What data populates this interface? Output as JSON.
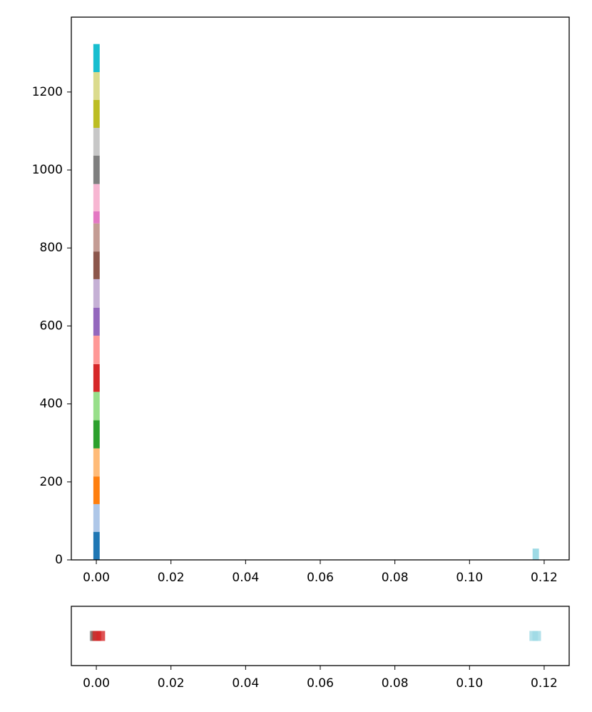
{
  "chart_data": [
    {
      "type": "histogram",
      "bins": [
        -0.0008,
        0.0009,
        0.1169,
        0.1186
      ],
      "stacked": true,
      "series": [
        {
          "color": "#1f77b4",
          "values": [
            72,
            0,
            0
          ]
        },
        {
          "color": "#aec7e8",
          "values": [
            71,
            0,
            0
          ]
        },
        {
          "color": "#ff7f0e",
          "values": [
            71,
            0,
            0
          ]
        },
        {
          "color": "#ffbb78",
          "values": [
            72,
            0,
            0
          ]
        },
        {
          "color": "#2ca02c",
          "values": [
            72,
            0,
            0
          ]
        },
        {
          "color": "#98df8a",
          "values": [
            73,
            0,
            0
          ]
        },
        {
          "color": "#d62728",
          "values": [
            71,
            0,
            0
          ]
        },
        {
          "color": "#ff9896",
          "values": [
            73,
            0,
            0
          ]
        },
        {
          "color": "#9467bd",
          "values": [
            72,
            0,
            0
          ]
        },
        {
          "color": "#c5b0d5",
          "values": [
            73,
            0,
            0
          ]
        },
        {
          "color": "#8c564b",
          "values": [
            71,
            0,
            0
          ]
        },
        {
          "color": "#c49c94",
          "values": [
            72,
            0,
            0
          ]
        },
        {
          "color": "#e377c2",
          "values": [
            31,
            0,
            0
          ]
        },
        {
          "color": "#f7b6d2",
          "values": [
            70,
            0,
            0
          ]
        },
        {
          "color": "#7f7f7f",
          "values": [
            73,
            0,
            0
          ]
        },
        {
          "color": "#c7c7c7",
          "values": [
            71,
            0,
            0
          ]
        },
        {
          "color": "#bcbd22",
          "values": [
            72,
            0,
            0
          ]
        },
        {
          "color": "#dbdb8d",
          "values": [
            71,
            0,
            0
          ]
        },
        {
          "color": "#17becf",
          "values": [
            72,
            0,
            0
          ]
        },
        {
          "color": "#9edae5",
          "values": [
            0,
            0,
            29
          ]
        }
      ],
      "xlim": [
        -0.0067,
        0.1267
      ],
      "ylim": [
        0,
        1392
      ],
      "xticks": [
        {
          "value": 0,
          "label": "0.00"
        },
        {
          "value": 0.02,
          "label": "0.02"
        },
        {
          "value": 0.04,
          "label": "0.04"
        },
        {
          "value": 0.06,
          "label": "0.06"
        },
        {
          "value": 0.08,
          "label": "0.08"
        },
        {
          "value": 0.1,
          "label": "0.10"
        },
        {
          "value": 0.12,
          "label": "0.12"
        }
      ],
      "yticks": [
        0,
        200,
        400,
        600,
        800,
        1000,
        1200
      ]
    },
    {
      "type": "strip",
      "series": [
        {
          "color": "#7f7f7f",
          "x": [
            -0.0006
          ]
        },
        {
          "color": "#8c564b",
          "x": [
            -0.0002
          ]
        },
        {
          "color": "#d62728",
          "x": [
            0.0002,
            0.0012
          ]
        },
        {
          "color": "#9edae5",
          "x": [
            0.1172,
            0.118
          ]
        }
      ],
      "xlim": [
        -0.0067,
        0.1267
      ],
      "xticks": [
        {
          "value": 0,
          "label": "0.00"
        },
        {
          "value": 0.02,
          "label": "0.02"
        },
        {
          "value": 0.04,
          "label": "0.04"
        },
        {
          "value": 0.06,
          "label": "0.06"
        },
        {
          "value": 0.08,
          "label": "0.08"
        },
        {
          "value": 0.1,
          "label": "0.10"
        },
        {
          "value": 0.12,
          "label": "0.12"
        }
      ]
    }
  ]
}
